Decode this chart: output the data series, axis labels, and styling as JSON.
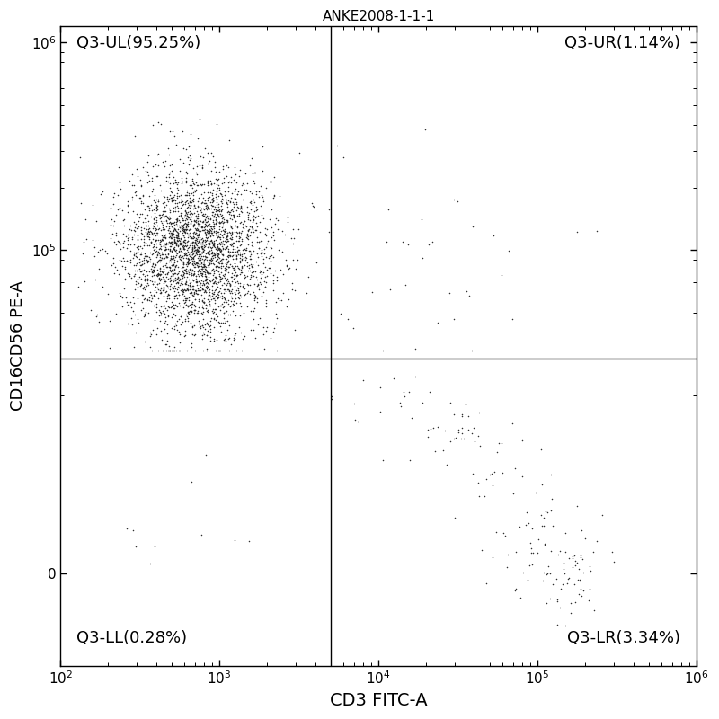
{
  "title": "ANKE2008-1-1-1",
  "xlabel": "CD3 FITC-A",
  "ylabel": "CD16CD56 PE-A",
  "xlim": [
    100,
    1000000
  ],
  "quadrant_x": 5000,
  "quadrant_y": 30000,
  "labels": {
    "UL": "Q3-UL(95.25%)",
    "UR": "Q3-UR(1.14%)",
    "LL": "Q3-LL(0.28%)",
    "LR": "Q3-LR(3.34%)"
  },
  "dot_color": "#303030",
  "dot_size": 1.2,
  "background_color": "#ffffff",
  "n_ul": 3000,
  "n_ur": 35,
  "n_ll": 10,
  "n_lr": 120,
  "seed": 42,
  "linthresh": 10000,
  "ylim_bottom": -8000,
  "ylim_top": 1200000
}
